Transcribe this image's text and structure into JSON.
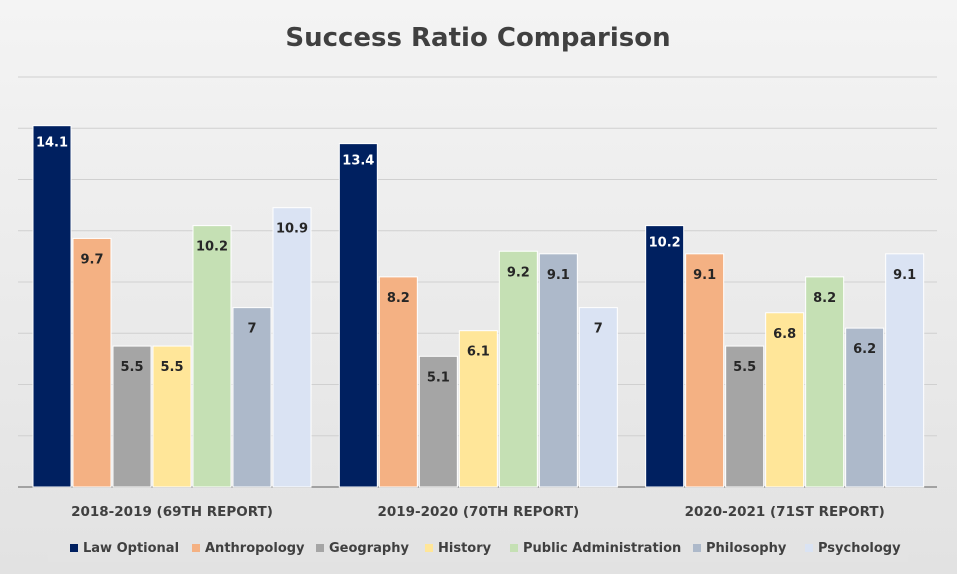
{
  "chart_data": {
    "type": "bar",
    "title": "Success Ratio Comparison",
    "xlabel": "",
    "ylabel": "",
    "ylim": [
      0,
      16
    ],
    "grid": true,
    "legend_position": "bottom",
    "categories": [
      "2018-2019 (69TH REPORT)",
      "2019-2020 (70TH REPORT)",
      "2020-2021 (71ST REPORT)"
    ],
    "series": [
      {
        "name": "Law Optional",
        "color": "#002060",
        "label_color": "#ffffff",
        "values": [
          14.1,
          13.4,
          10.2
        ]
      },
      {
        "name": "Anthropology",
        "color": "#f4b183",
        "label_color": "#262626",
        "values": [
          9.7,
          8.2,
          9.1
        ]
      },
      {
        "name": "Geography",
        "color": "#a5a5a5",
        "label_color": "#262626",
        "values": [
          5.5,
          5.1,
          5.5
        ]
      },
      {
        "name": "History",
        "color": "#ffe699",
        "label_color": "#262626",
        "values": [
          5.5,
          6.1,
          6.8
        ]
      },
      {
        "name": "Public Administration",
        "color": "#c5e0b4",
        "label_color": "#262626",
        "values": [
          10.2,
          9.2,
          8.2
        ]
      },
      {
        "name": "Philosophy",
        "color": "#adb9ca",
        "label_color": "#262626",
        "values": [
          7,
          9.1,
          6.2
        ]
      },
      {
        "name": "Psychology",
        "color": "#dae3f3",
        "label_color": "#262626",
        "values": [
          10.9,
          7,
          9.1
        ]
      }
    ]
  }
}
